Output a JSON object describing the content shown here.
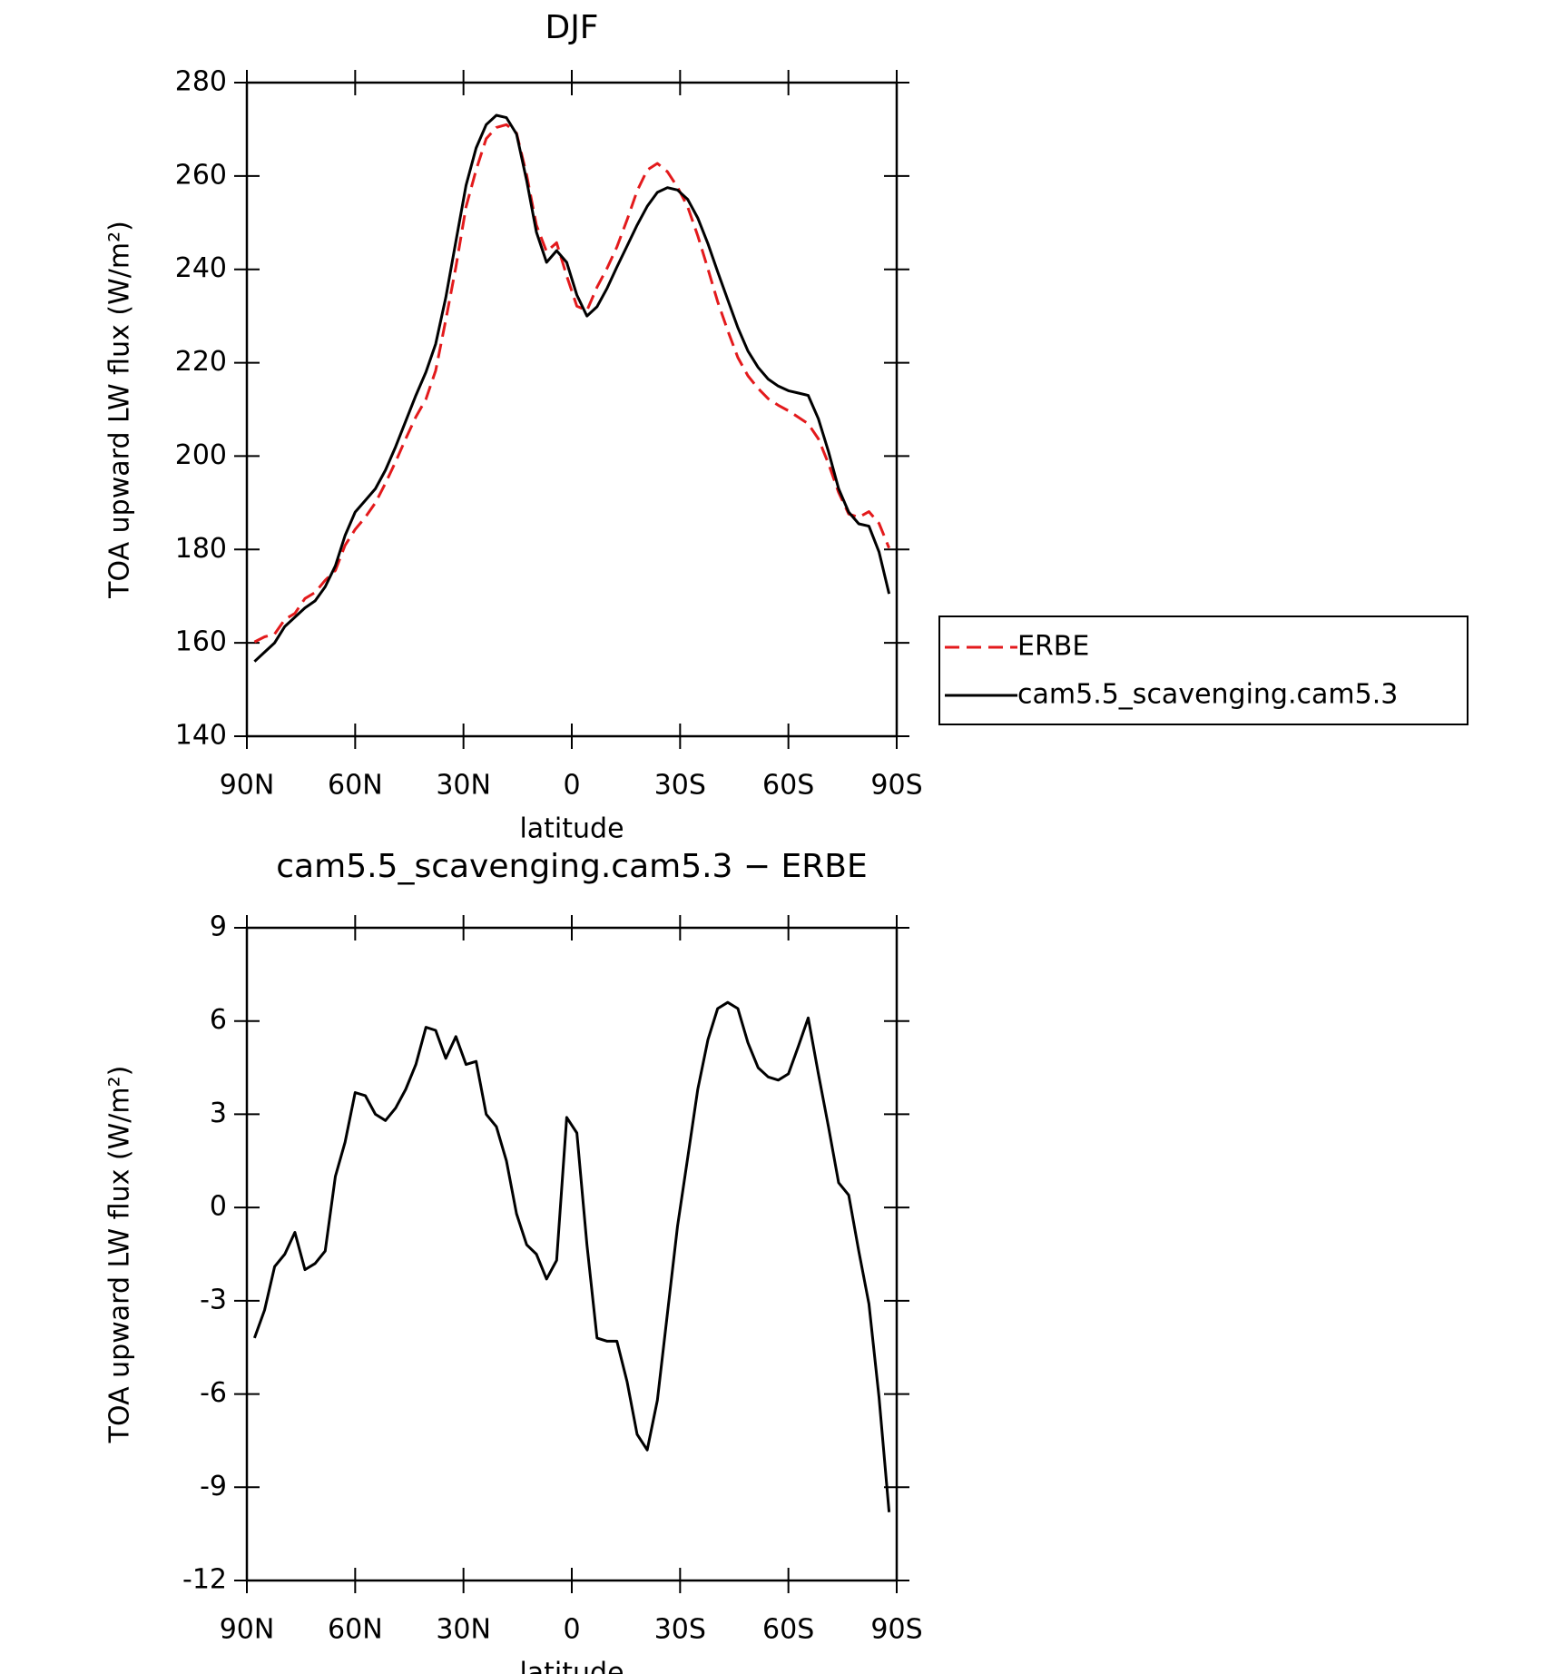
{
  "chart_data": [
    {
      "type": "line",
      "title": "DJF",
      "xlabel": "latitude",
      "ylabel": "TOA upward LW flux (W/m²)",
      "x": [
        87.9,
        85.1,
        82.3,
        79.5,
        76.7,
        73.9,
        71.1,
        68.3,
        65.5,
        62.8,
        60.0,
        57.2,
        54.4,
        51.6,
        48.8,
        46.0,
        43.2,
        40.4,
        37.7,
        34.9,
        32.1,
        29.3,
        26.5,
        23.7,
        20.9,
        18.1,
        15.3,
        12.5,
        9.8,
        7.0,
        4.2,
        1.4,
        -1.4,
        -4.2,
        -7.0,
        -9.8,
        -12.5,
        -15.3,
        -18.1,
        -20.9,
        -23.7,
        -26.5,
        -29.3,
        -32.1,
        -34.9,
        -37.7,
        -40.4,
        -43.2,
        -46.0,
        -48.8,
        -51.6,
        -54.4,
        -57.2,
        -60.0,
        -62.8,
        -65.5,
        -68.3,
        -71.1,
        -73.9,
        -76.7,
        -79.5,
        -82.3,
        -85.1,
        -87.9
      ],
      "series": [
        {
          "name": "ERBE",
          "color": "#e31a1c",
          "dash": true,
          "values": [
            160.2,
            161.3,
            161.9,
            165,
            166.3,
            169.5,
            170.8,
            173.4,
            175.5,
            180.9,
            184.3,
            186.9,
            190,
            194.2,
            198.8,
            203.7,
            208.4,
            212.2,
            218.3,
            229.2,
            240.5,
            253.4,
            261.3,
            268,
            270.4,
            271,
            269.2,
            260.2,
            249.5,
            243.8,
            245.7,
            238.6,
            232.1,
            231.2,
            236.2,
            240.3,
            244.8,
            250.6,
            256.8,
            261.3,
            262.7,
            260.9,
            257.6,
            253.4,
            247.2,
            240.1,
            233.1,
            226.9,
            221.1,
            217.2,
            214.5,
            212.3,
            210.9,
            209.7,
            208.3,
            206.9,
            203.7,
            198.4,
            192.2,
            187.6,
            186.9,
            188.1,
            185.6,
            180.3
          ]
        },
        {
          "name": "cam5.5_scavenging.cam5.3",
          "color": "#000000",
          "dash": false,
          "values": [
            156,
            158,
            160,
            163.5,
            165.5,
            167.5,
            169,
            172,
            176.5,
            183,
            188,
            190.5,
            193,
            197,
            202,
            207.5,
            213,
            218,
            224,
            234,
            246,
            258,
            266,
            271,
            273,
            272.5,
            269,
            259,
            248,
            241.5,
            244,
            241.5,
            234.5,
            230,
            232,
            236,
            240.5,
            245,
            249.5,
            253.5,
            256.5,
            257.5,
            257,
            255,
            251,
            245.5,
            239.5,
            233.5,
            227.5,
            222.5,
            219,
            216.5,
            215,
            214,
            213.5,
            213,
            208,
            201,
            193,
            188,
            185.5,
            185,
            179.5,
            170.5
          ]
        }
      ],
      "xlim": [
        90,
        -90
      ],
      "xticks": [
        {
          "value": 90,
          "label": "90N"
        },
        {
          "value": 60,
          "label": "60N"
        },
        {
          "value": 30,
          "label": "30N"
        },
        0,
        {
          "value": -30,
          "label": "30S"
        },
        {
          "value": -60,
          "label": "60S"
        },
        {
          "value": -90,
          "label": "90S"
        }
      ],
      "ylim": [
        140,
        280
      ],
      "yticks": [
        140,
        160,
        180,
        200,
        220,
        240,
        260,
        280
      ],
      "legend": "right"
    },
    {
      "type": "line",
      "title": "cam5.5_scavenging.cam5.3 − ERBE",
      "xlabel": "latitude",
      "ylabel": "TOA upward LW flux (W/m²)",
      "x": [
        87.9,
        85.1,
        82.3,
        79.5,
        76.7,
        73.9,
        71.1,
        68.3,
        65.5,
        62.8,
        60.0,
        57.2,
        54.4,
        51.6,
        48.8,
        46.0,
        43.2,
        40.4,
        37.7,
        34.9,
        32.1,
        29.3,
        26.5,
        23.7,
        20.9,
        18.1,
        15.3,
        12.5,
        9.8,
        7.0,
        4.2,
        1.4,
        -1.4,
        -4.2,
        -7.0,
        -9.8,
        -12.5,
        -15.3,
        -18.1,
        -20.9,
        -23.7,
        -26.5,
        -29.3,
        -32.1,
        -34.9,
        -37.7,
        -40.4,
        -43.2,
        -46.0,
        -48.8,
        -51.6,
        -54.4,
        -57.2,
        -60.0,
        -62.8,
        -65.5,
        -68.3,
        -71.1,
        -73.9,
        -76.7,
        -79.5,
        -82.3,
        -85.1,
        -87.9
      ],
      "color": "#000000",
      "values": [
        -4.2,
        -3.3,
        -1.9,
        -1.5,
        -0.8,
        -2.0,
        -1.8,
        -1.4,
        1.0,
        2.1,
        3.7,
        3.6,
        3.0,
        2.8,
        3.2,
        3.8,
        4.6,
        5.8,
        5.7,
        4.8,
        5.5,
        4.6,
        4.7,
        3.0,
        2.6,
        1.5,
        -0.2,
        -1.2,
        -1.5,
        -2.3,
        -1.7,
        2.9,
        2.4,
        -1.2,
        -4.2,
        -4.3,
        -4.3,
        -5.6,
        -7.3,
        -7.8,
        -6.2,
        -3.4,
        -0.6,
        1.6,
        3.8,
        5.4,
        6.4,
        6.6,
        6.4,
        5.3,
        4.5,
        4.2,
        4.1,
        4.3,
        5.2,
        6.1,
        4.3,
        2.6,
        0.8,
        0.4,
        -1.4,
        -3.1,
        -6.1,
        -9.8
      ],
      "xlim": [
        90,
        -90
      ],
      "xticks": [
        {
          "value": 90,
          "label": "90N"
        },
        {
          "value": 60,
          "label": "60N"
        },
        {
          "value": 30,
          "label": "30N"
        },
        0,
        {
          "value": -30,
          "label": "30S"
        },
        {
          "value": -60,
          "label": "60S"
        },
        {
          "value": -90,
          "label": "90S"
        }
      ],
      "ylim": [
        -12,
        9
      ],
      "yticks": [
        -12,
        -9,
        -6,
        -3,
        0,
        3,
        6,
        9
      ]
    }
  ]
}
